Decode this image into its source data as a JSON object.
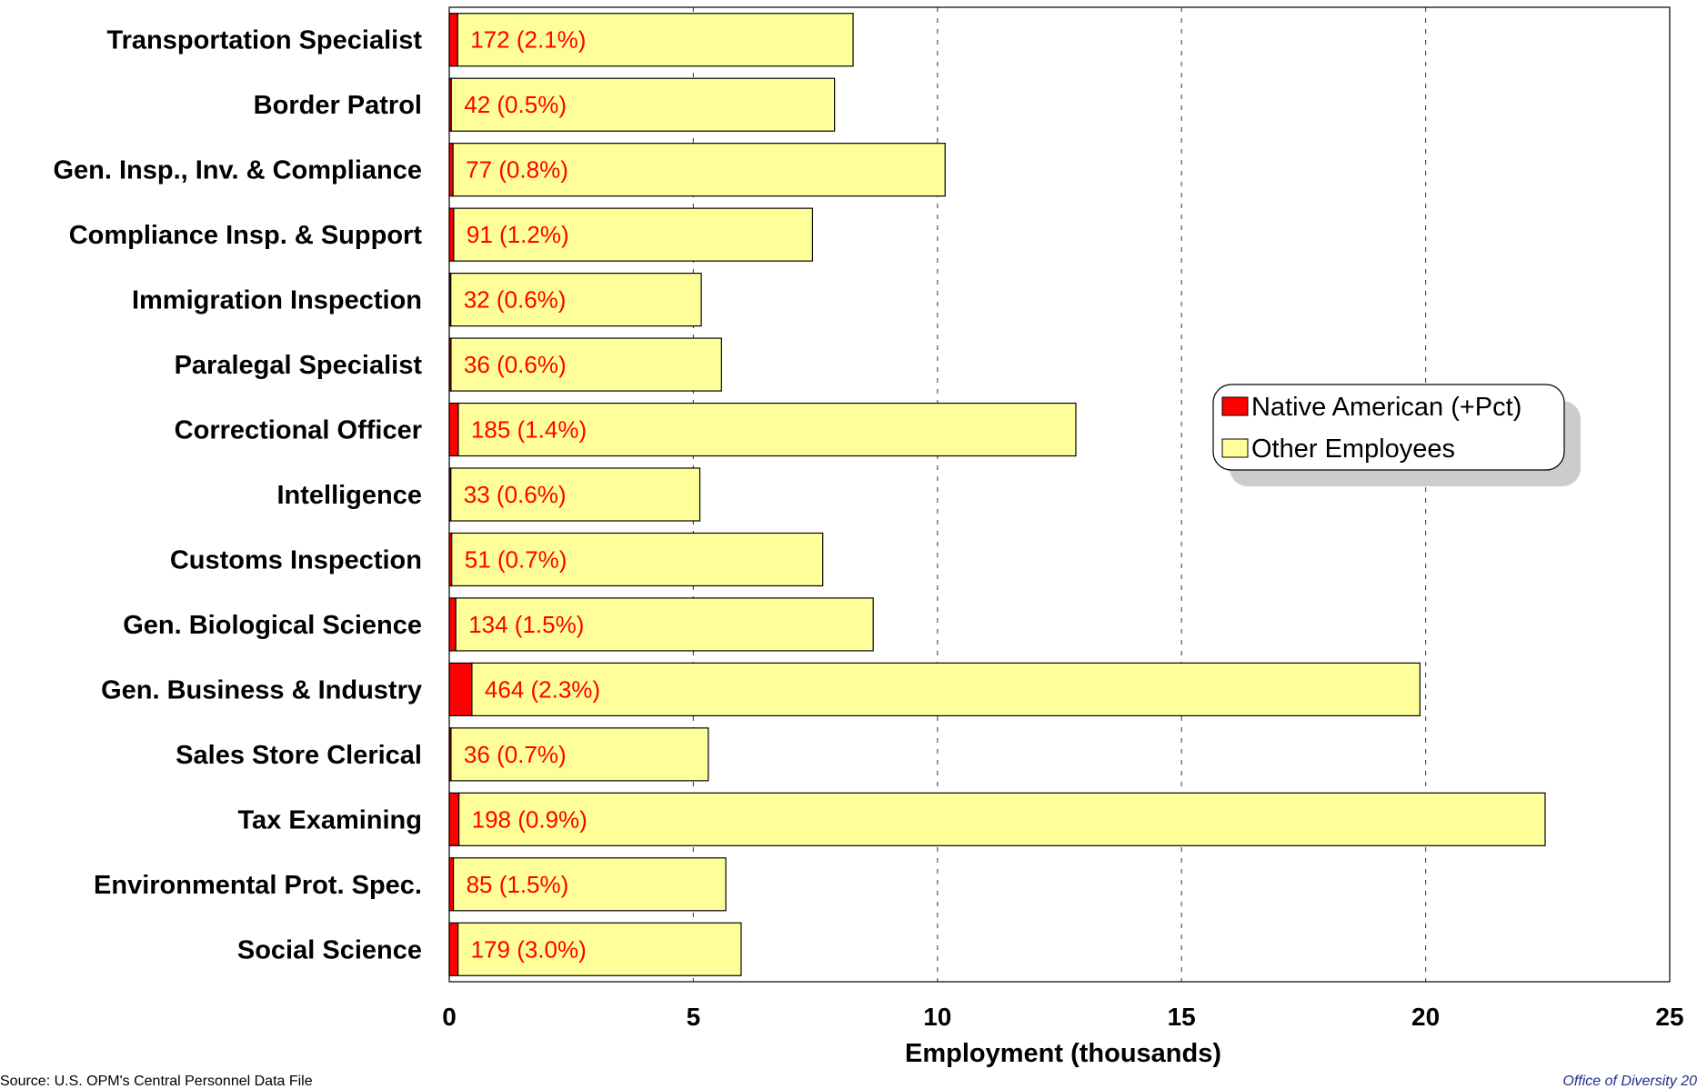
{
  "chart_data": {
    "type": "bar",
    "orientation": "horizontal",
    "stacked": true,
    "categories": [
      "Transportation Specialist",
      "Border Patrol",
      "Gen. Insp., Inv. & Compliance",
      "Compliance Insp. & Support",
      "Immigration Inspection",
      "Paralegal Specialist",
      "Correctional Officer",
      "Intelligence",
      "Customs Inspection",
      "Gen. Biological Science",
      "Gen. Business & Industry",
      "Sales Store Clerical",
      "Tax Examining",
      "Environmental Prot. Spec.",
      "Social Science"
    ],
    "series": [
      {
        "name": "Native American (+Pct)",
        "color": "#ff0000",
        "values": [
          0.172,
          0.042,
          0.077,
          0.091,
          0.032,
          0.036,
          0.185,
          0.033,
          0.051,
          0.134,
          0.464,
          0.036,
          0.198,
          0.085,
          0.179
        ]
      },
      {
        "name": "Other Employees",
        "color": "#ffff99",
        "values": [
          8.1,
          7.85,
          10.08,
          7.35,
          5.13,
          5.54,
          12.65,
          5.1,
          7.6,
          8.55,
          19.42,
          5.27,
          22.25,
          5.58,
          5.8
        ]
      }
    ],
    "data_labels": [
      "172 (2.1%)",
      "42 (0.5%)",
      "77 (0.8%)",
      "91 (1.2%)",
      "32 (0.6%)",
      "36 (0.6%)",
      "185 (1.4%)",
      "33 (0.6%)",
      "51 (0.7%)",
      "134 (1.5%)",
      "464 (2.3%)",
      "36 (0.7%)",
      "198 (0.9%)",
      "85 (1.5%)",
      "179 (3.0%)"
    ],
    "xlabel": "Employment (thousands)",
    "ylabel": "",
    "xlim": [
      0,
      25
    ],
    "xticks": [
      "0",
      "5",
      "10",
      "15",
      "20",
      "25"
    ],
    "grid": "vertical dashed",
    "legend_position": "right"
  },
  "footer": {
    "source": "Source: U.S. OPM's Central Personnel Data File",
    "right": "Office of Diversity 20"
  }
}
